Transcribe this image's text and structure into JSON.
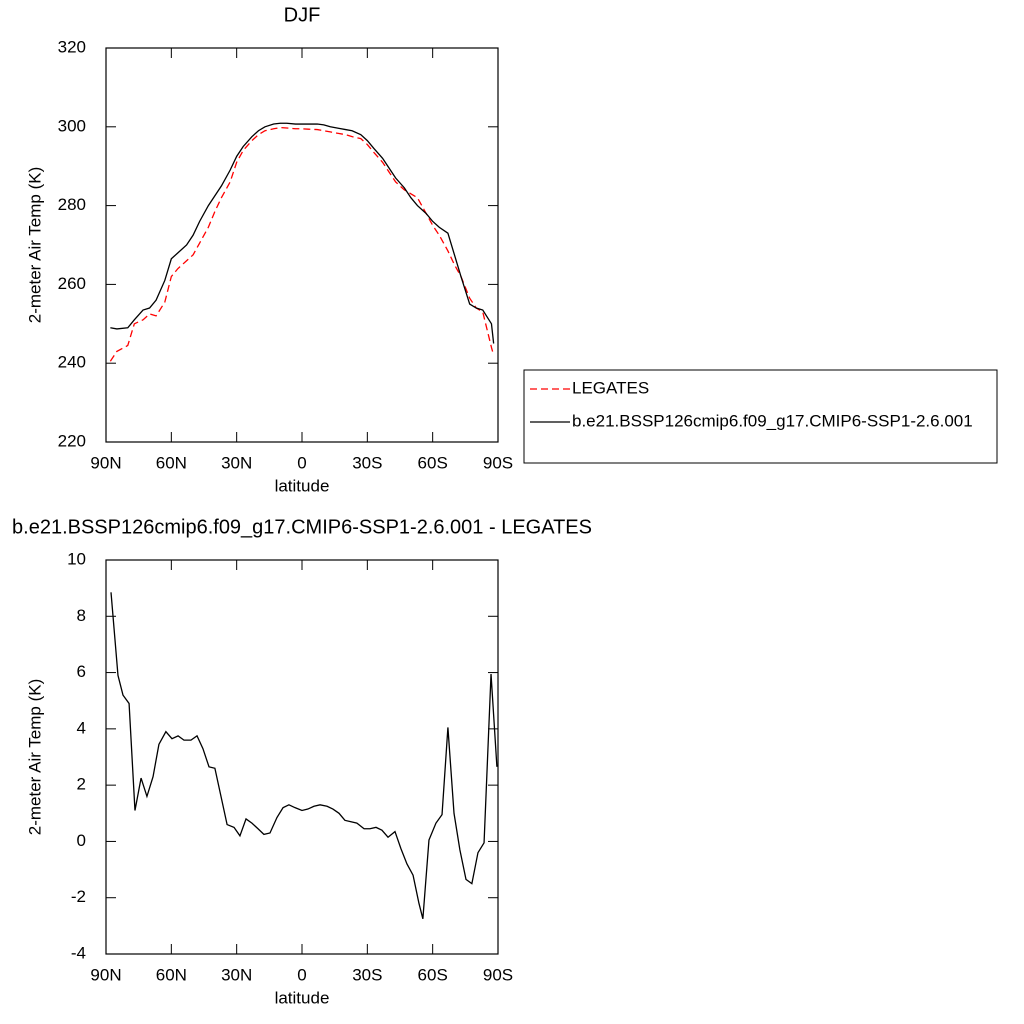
{
  "chart_data": [
    {
      "type": "line",
      "title": "DJF",
      "xlabel": "latitude",
      "ylabel": "2-meter Air Temp (K)",
      "x": [
        88,
        85,
        80,
        77,
        73,
        70,
        67,
        63,
        60,
        57,
        53,
        50,
        47,
        43,
        40,
        37,
        33,
        30,
        27,
        23,
        20,
        17,
        13,
        10,
        7,
        3,
        0,
        -3,
        -7,
        -10,
        -13,
        -17,
        -20,
        -23,
        -27,
        -30,
        -33,
        -37,
        -40,
        -43,
        -47,
        -50,
        -53,
        -57,
        -60,
        -63,
        -67,
        -70,
        -73,
        -77,
        -80,
        -83,
        -87,
        -88
      ],
      "series": [
        {
          "name": "LEGATES",
          "color": "#ff0000",
          "line_style": "dashed",
          "values": [
            240.5,
            243,
            244.5,
            250,
            251,
            252.5,
            252,
            255.5,
            262,
            264,
            266,
            267.5,
            270.5,
            274.5,
            278.5,
            282,
            286,
            291,
            294,
            296.5,
            298,
            299,
            299.5,
            299.8,
            299.7,
            299.5,
            299.5,
            299.4,
            299.3,
            299,
            298.7,
            298.3,
            298,
            297.5,
            297,
            295.5,
            293.5,
            291,
            288.5,
            286,
            284,
            283,
            282,
            278,
            275,
            272.5,
            268.5,
            265,
            262,
            256.5,
            254,
            253,
            244,
            242
          ]
        },
        {
          "name": "b.e21.BSSP126cmip6.f09_g17.CMIP6-SSP1-2.6.001",
          "color": "#000000",
          "line_style": "solid",
          "values": [
            249,
            248.7,
            249,
            251,
            253.5,
            254,
            256,
            261,
            266.5,
            268,
            270,
            272.5,
            276,
            280,
            282.5,
            285,
            289,
            292.5,
            295,
            297.5,
            299,
            300,
            300.7,
            300.9,
            300.9,
            300.7,
            300.7,
            300.7,
            300.7,
            300.5,
            300,
            299.6,
            299.3,
            299,
            298,
            296.5,
            294.5,
            292,
            289.5,
            287,
            284.5,
            282,
            280,
            278,
            276,
            274.5,
            273,
            267.5,
            262,
            255,
            254,
            253.5,
            250,
            245
          ]
        }
      ],
      "xlim": [
        90,
        -90
      ],
      "xticks": [
        {
          "value": 90,
          "label": "90N"
        },
        {
          "value": 60,
          "label": "60N"
        },
        {
          "value": 30,
          "label": "30N"
        },
        0,
        {
          "value": -30,
          "label": "30S"
        },
        {
          "value": -60,
          "label": "60S"
        },
        {
          "value": -90,
          "label": "90S"
        }
      ],
      "ylim": [
        220,
        320
      ],
      "yticks": [
        220,
        240,
        260,
        280,
        300,
        320
      ]
    },
    {
      "type": "line",
      "title": "b.e21.BSSP126cmip6.f09_g17.CMIP6-SSP1-2.6.001 - LEGATES",
      "xlabel": "latitude",
      "ylabel": "2-meter Air Temp (K)",
      "x": [
        87.7,
        84.5,
        82.2,
        79.4,
        76.7,
        73.9,
        71.2,
        68.4,
        65.7,
        62.5,
        59.7,
        56.9,
        54.2,
        51,
        48.2,
        45.5,
        42.7,
        40,
        37.2,
        34.4,
        31.2,
        28.5,
        25.7,
        23,
        20.2,
        17.5,
        14.7,
        11.5,
        8.7,
        6,
        3.2,
        0,
        -2.7,
        -5.5,
        -8.3,
        -11.5,
        -14.2,
        -17,
        -19.7,
        -22.5,
        -25.2,
        -28.5,
        -31.2,
        -34,
        -36.7,
        -39.5,
        -42.7,
        -45.4,
        -48.2,
        -51,
        -53.7,
        -55.5,
        -58.3,
        -61.5,
        -64.3,
        -67,
        -69.8,
        -72.5,
        -75.3,
        -78,
        -80.8,
        -83.6,
        -86.8,
        -89.5
      ],
      "color": "#000000",
      "values": [
        8.85,
        5.9,
        5.2,
        4.9,
        1.1,
        2.25,
        1.6,
        2.3,
        3.45,
        3.9,
        3.65,
        3.75,
        3.6,
        3.6,
        3.75,
        3.3,
        2.65,
        2.6,
        1.6,
        0.6,
        0.5,
        0.2,
        0.8,
        0.65,
        0.45,
        0.25,
        0.3,
        0.85,
        1.2,
        1.3,
        1.2,
        1.1,
        1.15,
        1.25,
        1.3,
        1.25,
        1.15,
        1,
        0.75,
        0.7,
        0.65,
        0.45,
        0.45,
        0.5,
        0.4,
        0.15,
        0.35,
        -0.25,
        -0.8,
        -1.2,
        -2.2,
        -2.75,
        0.05,
        0.65,
        0.95,
        4.05,
        1,
        -0.3,
        -1.35,
        -1.5,
        -0.4,
        -0.05,
        5.95,
        2.65
      ],
      "xlim": [
        90,
        -90
      ],
      "xticks": [
        {
          "value": 90,
          "label": "90N"
        },
        {
          "value": 60,
          "label": "60N"
        },
        {
          "value": 30,
          "label": "30N"
        },
        0,
        {
          "value": -30,
          "label": "30S"
        },
        {
          "value": -60,
          "label": "60S"
        },
        {
          "value": -90,
          "label": "90S"
        }
      ],
      "ylim": [
        -4,
        10
      ],
      "yticks": [
        -4,
        -2,
        0,
        2,
        4,
        6,
        8,
        10
      ]
    }
  ]
}
